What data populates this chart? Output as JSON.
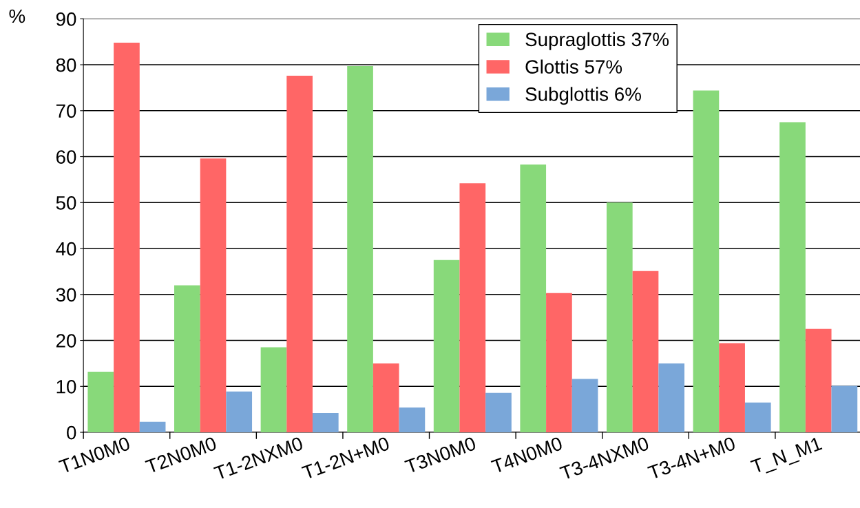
{
  "chart_data": {
    "type": "bar",
    "ylabel": "%",
    "categories": [
      "T1N0M0",
      "T2N0M0",
      "T1-2NXM0",
      "T1-2N+M0",
      "T3N0M0",
      "T4N0M0",
      "T3-4NXM0",
      "T3-4N+M0",
      "T_N_M1"
    ],
    "series": [
      {
        "name": "Supraglottis 37%",
        "color": "#88d97a",
        "values": [
          13.2,
          32,
          18.5,
          79.7,
          37.5,
          58.3,
          50,
          74.4,
          67.5
        ]
      },
      {
        "name": "Glottis 57%",
        "color": "#ff6666",
        "values": [
          84.8,
          59.6,
          77.6,
          15,
          54.2,
          30.3,
          35.1,
          19.4,
          22.5
        ]
      },
      {
        "name": "Subglottis 6%",
        "color": "#7aa7d9",
        "values": [
          2.3,
          8.9,
          4.2,
          5.4,
          8.6,
          11.6,
          15,
          6.5,
          10.1
        ]
      }
    ],
    "ylim": [
      0,
      90
    ],
    "yticks": [
      0,
      10,
      20,
      30,
      40,
      50,
      60,
      70,
      80,
      90
    ],
    "grid": "y",
    "legend": "top right"
  }
}
